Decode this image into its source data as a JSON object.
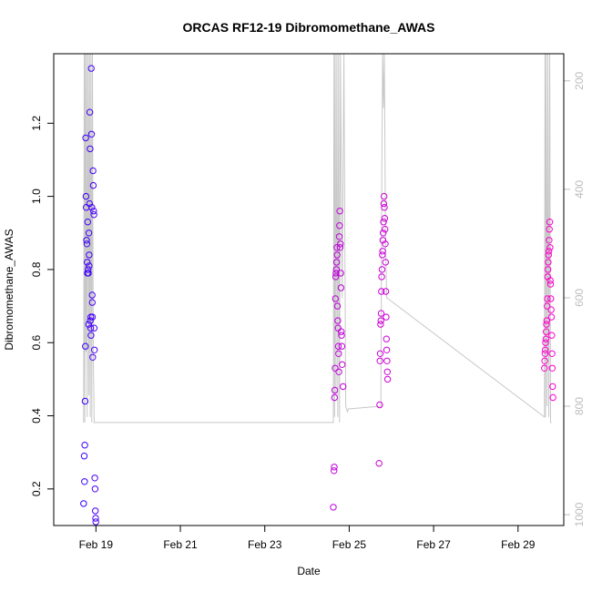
{
  "chart_data": {
    "type": "scatter",
    "title": "ORCAS RF12-19 Dibromomethane_AWAS",
    "xlabel": "Date",
    "ylabel": "Dibromomethane_AWAS",
    "xlim": [
      "2016-02-18 00:00",
      "2016-03-01 02:00"
    ],
    "ylim": [
      0.1,
      1.39
    ],
    "y2lim": [
      1020,
      150
    ],
    "x_ticks": [
      {
        "value": "2016-02-19",
        "label": "Feb 19"
      },
      {
        "value": "2016-02-21",
        "label": "Feb 21"
      },
      {
        "value": "2016-02-23",
        "label": "Feb 23"
      },
      {
        "value": "2016-02-25",
        "label": "Feb 25"
      },
      {
        "value": "2016-02-27",
        "label": "Feb 27"
      },
      {
        "value": "2016-02-29",
        "label": "Feb 29"
      }
    ],
    "y_ticks": [
      {
        "value": 0.2,
        "label": "0.2"
      },
      {
        "value": 0.4,
        "label": "0.4"
      },
      {
        "value": 0.6,
        "label": "0.6"
      },
      {
        "value": 0.8,
        "label": "0.8"
      },
      {
        "value": 1.0,
        "label": "1.0"
      },
      {
        "value": 1.2,
        "label": "1.2"
      }
    ],
    "y2_ticks": [
      {
        "value": 200,
        "label": "200"
      },
      {
        "value": 400,
        "label": "400"
      },
      {
        "value": 600,
        "label": "600"
      },
      {
        "value": 800,
        "label": "800"
      },
      {
        "value": 1000,
        "label": "1000"
      }
    ],
    "grid": false,
    "colors": {
      "series_start": "#3300ff",
      "series_end": "#ff00cc",
      "pressure_line": "#c8c8c8",
      "right_axis": "#bdbdbd"
    },
    "pressure_trace": [
      [
        "2016-02-18 17:00",
        830
      ],
      [
        "2016-02-18 17:20",
        150
      ],
      [
        "2016-02-18 17:40",
        830
      ],
      [
        "2016-02-18 18:00",
        150
      ],
      [
        "2016-02-18 18:20",
        700
      ],
      [
        "2016-02-18 18:40",
        150
      ],
      [
        "2016-02-18 19:00",
        820
      ],
      [
        "2016-02-18 19:30",
        150
      ],
      [
        "2016-02-18 20:00",
        780
      ],
      [
        "2016-02-18 20:20",
        150
      ],
      [
        "2016-02-18 20:45",
        820
      ],
      [
        "2016-02-18 21:10",
        150
      ],
      [
        "2016-02-18 21:40",
        830
      ],
      [
        "2016-02-18 22:00",
        150
      ],
      [
        "2016-02-18 22:30",
        700
      ],
      [
        "2016-02-18 23:00",
        830
      ],
      [
        "2016-02-18 23:30",
        830
      ],
      [
        "2016-02-19 00:00",
        830
      ],
      [
        "2016-02-24 15:00",
        830
      ],
      [
        "2016-02-24 15:20",
        150
      ],
      [
        "2016-02-24 15:40",
        820
      ],
      [
        "2016-02-24 16:00",
        150
      ],
      [
        "2016-02-24 16:30",
        780
      ],
      [
        "2016-02-24 17:00",
        150
      ],
      [
        "2016-02-24 17:30",
        820
      ],
      [
        "2016-02-24 18:00",
        150
      ],
      [
        "2016-02-24 18:30",
        830
      ],
      [
        "2016-02-24 19:00",
        150
      ],
      [
        "2016-02-24 20:00",
        600
      ],
      [
        "2016-02-24 21:00",
        150
      ],
      [
        "2016-02-24 22:00",
        800
      ],
      [
        "2016-02-24 23:00",
        810
      ],
      [
        "2016-02-24 23:30",
        805
      ],
      [
        "2016-02-25 18:00",
        800
      ],
      [
        "2016-02-25 18:30",
        400
      ],
      [
        "2016-02-25 19:00",
        150
      ],
      [
        "2016-02-25 19:30",
        250
      ],
      [
        "2016-02-25 20:00",
        150
      ],
      [
        "2016-02-25 20:40",
        500
      ],
      [
        "2016-02-25 21:20",
        600
      ],
      [
        "2016-02-29 15:00",
        820
      ],
      [
        "2016-02-29 15:20",
        150
      ],
      [
        "2016-02-29 15:40",
        820
      ],
      [
        "2016-02-29 16:00",
        150
      ],
      [
        "2016-02-29 16:30",
        800
      ],
      [
        "2016-02-29 17:00",
        150
      ],
      [
        "2016-02-29 17:30",
        820
      ],
      [
        "2016-02-29 18:00",
        150
      ],
      [
        "2016-02-29 18:30",
        830
      ],
      [
        "2016-02-29 19:00",
        830
      ]
    ],
    "points": [
      [
        "2016-02-18 17:00",
        0.16
      ],
      [
        "2016-02-18 17:20",
        0.29
      ],
      [
        "2016-02-18 17:30",
        0.22
      ],
      [
        "2016-02-18 17:40",
        0.32
      ],
      [
        "2016-02-18 17:50",
        0.44
      ],
      [
        "2016-02-18 18:00",
        0.59
      ],
      [
        "2016-02-18 18:10",
        1.16
      ],
      [
        "2016-02-18 18:20",
        1.0
      ],
      [
        "2016-02-18 18:30",
        0.97
      ],
      [
        "2016-02-18 18:40",
        0.88
      ],
      [
        "2016-02-18 18:50",
        0.87
      ],
      [
        "2016-02-18 19:00",
        0.82
      ],
      [
        "2016-02-18 19:10",
        0.79
      ],
      [
        "2016-02-18 19:20",
        0.93
      ],
      [
        "2016-02-18 19:30",
        0.8
      ],
      [
        "2016-02-18 19:40",
        0.79
      ],
      [
        "2016-02-18 19:50",
        0.65
      ],
      [
        "2016-02-18 20:00",
        0.9
      ],
      [
        "2016-02-18 20:05",
        0.81
      ],
      [
        "2016-02-18 20:10",
        0.84
      ],
      [
        "2016-02-18 20:20",
        0.98
      ],
      [
        "2016-02-18 20:30",
        1.23
      ],
      [
        "2016-02-18 20:40",
        1.13
      ],
      [
        "2016-02-18 20:50",
        0.66
      ],
      [
        "2016-02-18 21:00",
        0.64
      ],
      [
        "2016-02-18 21:05",
        0.67
      ],
      [
        "2016-02-18 21:10",
        0.62
      ],
      [
        "2016-02-18 21:20",
        1.35
      ],
      [
        "2016-02-18 21:30",
        1.17
      ],
      [
        "2016-02-18 21:40",
        0.97
      ],
      [
        "2016-02-18 21:50",
        0.73
      ],
      [
        "2016-02-18 21:55",
        0.71
      ],
      [
        "2016-02-18 22:00",
        0.67
      ],
      [
        "2016-02-18 22:10",
        0.56
      ],
      [
        "2016-02-18 22:20",
        1.07
      ],
      [
        "2016-02-18 22:30",
        1.03
      ],
      [
        "2016-02-18 22:40",
        0.96
      ],
      [
        "2016-02-18 22:50",
        0.95
      ],
      [
        "2016-02-18 23:00",
        0.64
      ],
      [
        "2016-02-18 23:10",
        0.58
      ],
      [
        "2016-02-18 23:20",
        0.23
      ],
      [
        "2016-02-18 23:30",
        0.2
      ],
      [
        "2016-02-18 23:40",
        0.14
      ],
      [
        "2016-02-18 23:50",
        0.12
      ],
      [
        "2016-02-18 23:55",
        0.11
      ],
      [
        "2016-02-24 15:00",
        0.15
      ],
      [
        "2016-02-24 15:20",
        0.25
      ],
      [
        "2016-02-24 15:30",
        0.26
      ],
      [
        "2016-02-24 15:40",
        0.45
      ],
      [
        "2016-02-24 15:50",
        0.47
      ],
      [
        "2016-02-24 16:00",
        0.53
      ],
      [
        "2016-02-24 16:10",
        0.72
      ],
      [
        "2016-02-24 16:20",
        0.78
      ],
      [
        "2016-02-24 16:30",
        0.79
      ],
      [
        "2016-02-24 16:40",
        0.8
      ],
      [
        "2016-02-24 16:50",
        0.82
      ],
      [
        "2016-02-24 17:00",
        0.86
      ],
      [
        "2016-02-24 17:10",
        0.84
      ],
      [
        "2016-02-24 17:20",
        0.7
      ],
      [
        "2016-02-24 17:30",
        0.66
      ],
      [
        "2016-02-24 17:40",
        0.64
      ],
      [
        "2016-02-24 17:50",
        0.59
      ],
      [
        "2016-02-24 18:00",
        0.57
      ],
      [
        "2016-02-24 18:10",
        0.52
      ],
      [
        "2016-02-24 18:20",
        0.89
      ],
      [
        "2016-02-24 18:30",
        0.92
      ],
      [
        "2016-02-24 18:40",
        0.96
      ],
      [
        "2016-02-24 18:50",
        0.86
      ],
      [
        "2016-02-24 19:00",
        0.87
      ],
      [
        "2016-02-24 19:10",
        0.79
      ],
      [
        "2016-02-24 19:20",
        0.75
      ],
      [
        "2016-02-24 19:30",
        0.63
      ],
      [
        "2016-02-24 19:40",
        0.62
      ],
      [
        "2016-02-24 19:50",
        0.59
      ],
      [
        "2016-02-24 20:00",
        0.54
      ],
      [
        "2016-02-24 20:30",
        0.48
      ],
      [
        "2016-02-25 17:00",
        0.27
      ],
      [
        "2016-02-25 17:20",
        0.43
      ],
      [
        "2016-02-25 17:30",
        0.55
      ],
      [
        "2016-02-25 17:40",
        0.57
      ],
      [
        "2016-02-25 17:50",
        0.65
      ],
      [
        "2016-02-25 18:00",
        0.66
      ],
      [
        "2016-02-25 18:10",
        0.68
      ],
      [
        "2016-02-25 18:20",
        0.74
      ],
      [
        "2016-02-25 18:30",
        0.78
      ],
      [
        "2016-02-25 18:40",
        0.8
      ],
      [
        "2016-02-25 18:50",
        0.84
      ],
      [
        "2016-02-25 19:00",
        0.85
      ],
      [
        "2016-02-25 19:10",
        0.88
      ],
      [
        "2016-02-25 19:20",
        0.9
      ],
      [
        "2016-02-25 19:30",
        0.93
      ],
      [
        "2016-02-25 19:40",
        0.98
      ],
      [
        "2016-02-25 19:50",
        1.0
      ],
      [
        "2016-02-25 20:00",
        0.97
      ],
      [
        "2016-02-25 20:10",
        0.94
      ],
      [
        "2016-02-25 20:20",
        0.91
      ],
      [
        "2016-02-25 20:30",
        0.87
      ],
      [
        "2016-02-25 20:40",
        0.82
      ],
      [
        "2016-02-25 20:50",
        0.74
      ],
      [
        "2016-02-25 21:00",
        0.67
      ],
      [
        "2016-02-25 21:10",
        0.61
      ],
      [
        "2016-02-25 21:20",
        0.58
      ],
      [
        "2016-02-25 21:30",
        0.55
      ],
      [
        "2016-02-25 21:40",
        0.52
      ],
      [
        "2016-02-25 21:50",
        0.5
      ],
      [
        "2016-02-29 15:00",
        0.53
      ],
      [
        "2016-02-29 15:10",
        0.55
      ],
      [
        "2016-02-29 15:20",
        0.57
      ],
      [
        "2016-02-29 15:30",
        0.58
      ],
      [
        "2016-02-29 15:40",
        0.6
      ],
      [
        "2016-02-29 15:50",
        0.61
      ],
      [
        "2016-02-29 16:00",
        0.63
      ],
      [
        "2016-02-29 16:10",
        0.65
      ],
      [
        "2016-02-29 16:20",
        0.66
      ],
      [
        "2016-02-29 16:30",
        0.7
      ],
      [
        "2016-02-29 16:40",
        0.72
      ],
      [
        "2016-02-29 16:50",
        0.78
      ],
      [
        "2016-02-29 17:00",
        0.8
      ],
      [
        "2016-02-29 17:10",
        0.82
      ],
      [
        "2016-02-29 17:20",
        0.84
      ],
      [
        "2016-02-29 17:30",
        0.85
      ],
      [
        "2016-02-29 17:40",
        0.88
      ],
      [
        "2016-02-29 17:50",
        0.91
      ],
      [
        "2016-02-29 18:00",
        0.93
      ],
      [
        "2016-02-29 18:10",
        0.86
      ],
      [
        "2016-02-29 18:20",
        0.77
      ],
      [
        "2016-02-29 18:30",
        0.76
      ],
      [
        "2016-02-29 18:40",
        0.72
      ],
      [
        "2016-02-29 18:50",
        0.69
      ],
      [
        "2016-02-29 19:00",
        0.67
      ],
      [
        "2016-02-29 19:10",
        0.62
      ],
      [
        "2016-02-29 19:20",
        0.57
      ],
      [
        "2016-02-29 19:30",
        0.53
      ],
      [
        "2016-02-29 19:40",
        0.48
      ],
      [
        "2016-02-29 19:50",
        0.45
      ]
    ]
  }
}
